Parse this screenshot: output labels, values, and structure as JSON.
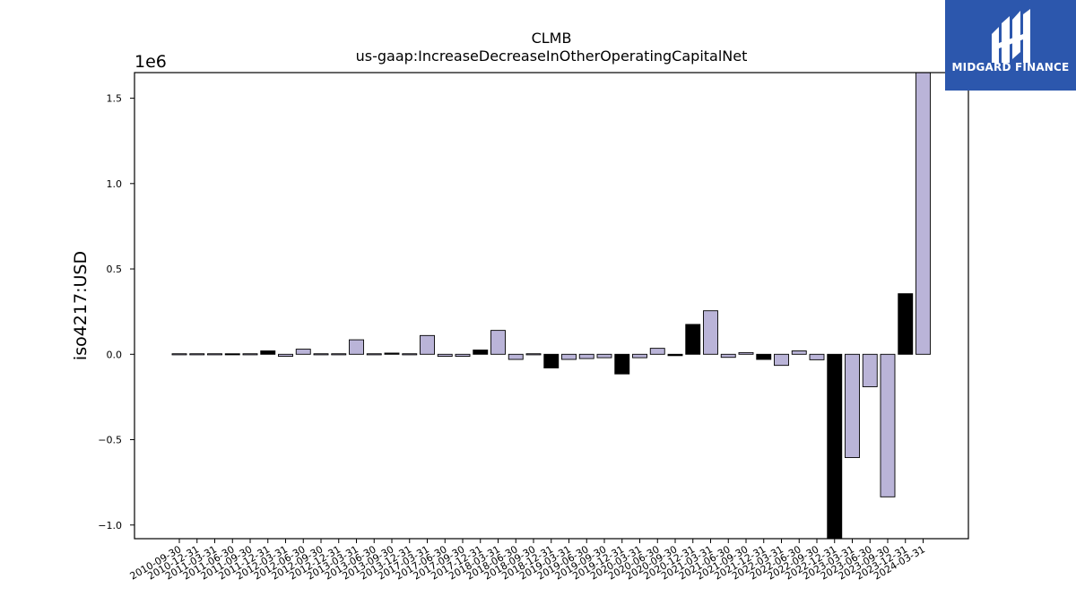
{
  "chart_data": {
    "type": "bar",
    "title": "CLMB",
    "subtitle": "us-gaap:IncreaseDecreaseInOtherOperatingCapitalNet",
    "ylabel": "iso4217:USD",
    "xlabel": "",
    "offset_label": "1e6",
    "ylim": [
      -1080000,
      1650000
    ],
    "yticks": [
      1500000,
      1000000,
      500000,
      0,
      -500000,
      -1000000
    ],
    "ytick_labels": [
      "1.5",
      "1.0",
      "0.5",
      "0.0",
      "−0.5",
      "−1.0"
    ],
    "grid": false,
    "categories": [
      "2010-09-30",
      "2010-12-31",
      "2011-03-31",
      "2011-06-30",
      "2011-09-30",
      "2011-12-31",
      "2012-03-31",
      "2012-06-30",
      "2012-09-30",
      "2012-12-31",
      "2013-03-31",
      "2013-06-30",
      "2013-09-30",
      "2013-12-31",
      "2017-03-31",
      "2017-06-30",
      "2017-09-30",
      "2017-12-31",
      "2018-03-31",
      "2018-06-30",
      "2018-09-30",
      "2018-12-31",
      "2019-03-31",
      "2019-06-30",
      "2019-09-30",
      "2019-12-31",
      "2020-03-31",
      "2020-06-30",
      "2020-09-30",
      "2020-12-31",
      "2021-03-31",
      "2021-06-30",
      "2021-09-30",
      "2021-12-31",
      "2022-03-31",
      "2022-06-30",
      "2022-09-30",
      "2022-12-31",
      "2023-03-31",
      "2023-06-30",
      "2023-09-30",
      "2023-12-31",
      "2024-03-31"
    ],
    "values": [
      -2000,
      -2000,
      -3000,
      6000,
      -4000,
      20000,
      -12000,
      30000,
      -3000,
      -2000,
      85000,
      -3000,
      7000,
      -2000,
      110000,
      -12000,
      -12000,
      25000,
      140000,
      -30000,
      -3000,
      -80000,
      -30000,
      -25000,
      -20000,
      -115000,
      -20000,
      35000,
      -8000,
      175000,
      255000,
      -18000,
      10000,
      -30000,
      -65000,
      20000,
      -32000,
      -1080000,
      -605000,
      -190000,
      -835000,
      355000,
      1650000
    ],
    "bar_colors": [
      "#bab4d8",
      "#bab4d8",
      "#bab4d8",
      "#000000",
      "#bab4d8",
      "#000000",
      "#bab4d8",
      "#bab4d8",
      "#bab4d8",
      "#bab4d8",
      "#bab4d8",
      "#bab4d8",
      "#000000",
      "#bab4d8",
      "#bab4d8",
      "#bab4d8",
      "#bab4d8",
      "#000000",
      "#bab4d8",
      "#bab4d8",
      "#bab4d8",
      "#000000",
      "#bab4d8",
      "#bab4d8",
      "#bab4d8",
      "#000000",
      "#bab4d8",
      "#bab4d8",
      "#000000",
      "#000000",
      "#bab4d8",
      "#bab4d8",
      "#bab4d8",
      "#000000",
      "#bab4d8",
      "#bab4d8",
      "#bab4d8",
      "#000000",
      "#bab4d8",
      "#bab4d8",
      "#bab4d8",
      "#000000",
      "#bab4d8"
    ]
  },
  "logo": {
    "text": "MIDGARD FINANCE",
    "background": "#2c57ad"
  }
}
